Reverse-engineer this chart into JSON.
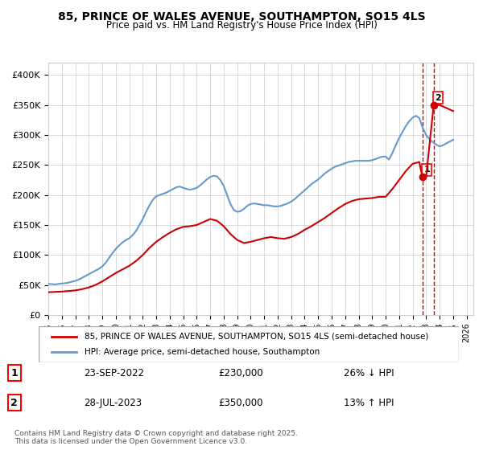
{
  "title": "85, PRINCE OF WALES AVENUE, SOUTHAMPTON, SO15 4LS",
  "subtitle": "Price paid vs. HM Land Registry's House Price Index (HPI)",
  "ylabel": "",
  "ylim": [
    0,
    420000
  ],
  "yticks": [
    0,
    50000,
    100000,
    150000,
    200000,
    250000,
    300000,
    350000,
    400000
  ],
  "xlim_start": 1995.0,
  "xlim_end": 2026.5,
  "background_color": "#ffffff",
  "grid_color": "#cccccc",
  "hpi_color": "#6699cc",
  "price_color": "#cc0000",
  "dashed_color": "#cc0000",
  "legend_label_price": "85, PRINCE OF WALES AVENUE, SOUTHAMPTON, SO15 4LS (semi-detached house)",
  "legend_label_hpi": "HPI: Average price, semi-detached house, Southampton",
  "transaction1_date": "23-SEP-2022",
  "transaction1_price": "£230,000",
  "transaction1_hpi": "26% ↓ HPI",
  "transaction2_date": "28-JUL-2023",
  "transaction2_price": "£350,000",
  "transaction2_hpi": "13% ↑ HPI",
  "footnote": "Contains HM Land Registry data © Crown copyright and database right 2025.\nThis data is licensed under the Open Government Licence v3.0.",
  "hpi_data_x": [
    1995.0,
    1995.25,
    1995.5,
    1995.75,
    1996.0,
    1996.25,
    1996.5,
    1996.75,
    1997.0,
    1997.25,
    1997.5,
    1997.75,
    1998.0,
    1998.25,
    1998.5,
    1998.75,
    1999.0,
    1999.25,
    1999.5,
    1999.75,
    2000.0,
    2000.25,
    2000.5,
    2000.75,
    2001.0,
    2001.25,
    2001.5,
    2001.75,
    2002.0,
    2002.25,
    2002.5,
    2002.75,
    2003.0,
    2003.25,
    2003.5,
    2003.75,
    2004.0,
    2004.25,
    2004.5,
    2004.75,
    2005.0,
    2005.25,
    2005.5,
    2005.75,
    2006.0,
    2006.25,
    2006.5,
    2006.75,
    2007.0,
    2007.25,
    2007.5,
    2007.75,
    2008.0,
    2008.25,
    2008.5,
    2008.75,
    2009.0,
    2009.25,
    2009.5,
    2009.75,
    2010.0,
    2010.25,
    2010.5,
    2010.75,
    2011.0,
    2011.25,
    2011.5,
    2011.75,
    2012.0,
    2012.25,
    2012.5,
    2012.75,
    2013.0,
    2013.25,
    2013.5,
    2013.75,
    2014.0,
    2014.25,
    2014.5,
    2014.75,
    2015.0,
    2015.25,
    2015.5,
    2015.75,
    2016.0,
    2016.25,
    2016.5,
    2016.75,
    2017.0,
    2017.25,
    2017.5,
    2017.75,
    2018.0,
    2018.25,
    2018.5,
    2018.75,
    2019.0,
    2019.25,
    2019.5,
    2019.75,
    2020.0,
    2020.25,
    2020.5,
    2020.75,
    2021.0,
    2021.25,
    2021.5,
    2021.75,
    2022.0,
    2022.25,
    2022.5,
    2022.75,
    2023.0,
    2023.25,
    2023.5,
    2023.75,
    2024.0,
    2024.25,
    2024.5,
    2024.75,
    2025.0
  ],
  "hpi_data_y": [
    52000,
    51500,
    51000,
    51800,
    52500,
    53000,
    54000,
    55500,
    57000,
    59000,
    62000,
    65000,
    68000,
    71000,
    74000,
    77000,
    81000,
    87000,
    95000,
    103000,
    110000,
    116000,
    121000,
    125000,
    128000,
    133000,
    140000,
    150000,
    160000,
    172000,
    183000,
    192000,
    198000,
    200000,
    202000,
    204000,
    207000,
    210000,
    213000,
    214000,
    212000,
    210000,
    209000,
    210000,
    212000,
    216000,
    221000,
    226000,
    230000,
    232000,
    231000,
    225000,
    215000,
    200000,
    185000,
    175000,
    172000,
    173000,
    177000,
    182000,
    185000,
    186000,
    185000,
    184000,
    183000,
    183000,
    182000,
    181000,
    181000,
    182000,
    184000,
    186000,
    189000,
    193000,
    198000,
    203000,
    208000,
    213000,
    218000,
    222000,
    226000,
    231000,
    236000,
    240000,
    244000,
    247000,
    249000,
    251000,
    253000,
    255000,
    256000,
    257000,
    257000,
    257000,
    257000,
    257000,
    258000,
    260000,
    262000,
    264000,
    264000,
    259000,
    270000,
    283000,
    295000,
    305000,
    315000,
    323000,
    329000,
    332000,
    328000,
    312000,
    300000,
    293000,
    288000,
    284000,
    281000,
    283000,
    286000,
    289000,
    292000
  ],
  "price_data_x": [
    1995.0,
    1995.5,
    1996.0,
    1996.5,
    1997.0,
    1997.5,
    1998.0,
    1998.5,
    1999.0,
    1999.5,
    2000.0,
    2000.5,
    2001.0,
    2001.5,
    2002.0,
    2002.5,
    2003.0,
    2003.5,
    2004.0,
    2004.5,
    2005.0,
    2005.5,
    2006.0,
    2006.5,
    2007.0,
    2007.5,
    2008.0,
    2008.5,
    2009.0,
    2009.5,
    2010.0,
    2010.5,
    2011.0,
    2011.5,
    2012.0,
    2012.5,
    2013.0,
    2013.5,
    2014.0,
    2014.5,
    2015.0,
    2015.5,
    2016.0,
    2016.5,
    2017.0,
    2017.5,
    2018.0,
    2018.5,
    2019.0,
    2019.5,
    2020.0,
    2020.5,
    2021.0,
    2021.5,
    2022.0,
    2022.5,
    2022.72,
    2023.0,
    2023.56,
    2024.0,
    2024.5,
    2025.0
  ],
  "price_data_y": [
    38000,
    38500,
    39000,
    40000,
    41000,
    43000,
    46000,
    50000,
    56000,
    63000,
    70000,
    76000,
    82000,
    90000,
    100000,
    112000,
    122000,
    130000,
    137000,
    143000,
    147000,
    148000,
    150000,
    155000,
    160000,
    157000,
    148000,
    135000,
    125000,
    120000,
    122000,
    125000,
    128000,
    130000,
    128000,
    127000,
    130000,
    135000,
    142000,
    148000,
    155000,
    162000,
    170000,
    178000,
    185000,
    190000,
    193000,
    194000,
    195000,
    197000,
    197000,
    210000,
    225000,
    240000,
    252000,
    255000,
    230000,
    230000,
    350000,
    350000,
    345000,
    340000
  ],
  "marker1_x": 2022.72,
  "marker1_y": 230000,
  "marker2_x": 2023.56,
  "marker2_y": 350000,
  "vline1_x": 2022.72,
  "vline2_x": 2023.56
}
